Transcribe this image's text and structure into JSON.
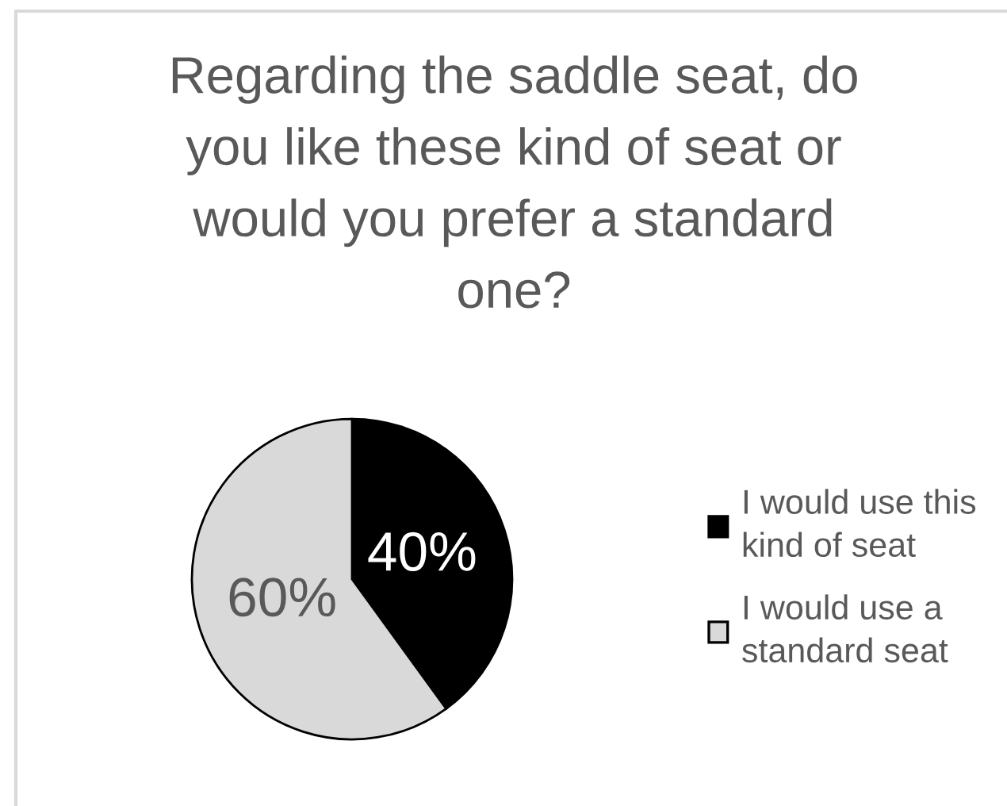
{
  "chart_data": {
    "type": "pie",
    "title": "Regarding the saddle seat, do you like these kind of seat or would you prefer a standard one?",
    "categories": [
      "I would use this kind of seat",
      "I would use a standard seat"
    ],
    "values": [
      40,
      60
    ],
    "colors": [
      "#000000",
      "#d9d9d9"
    ],
    "value_labels": [
      "40%",
      "60%"
    ],
    "legend": "right"
  }
}
